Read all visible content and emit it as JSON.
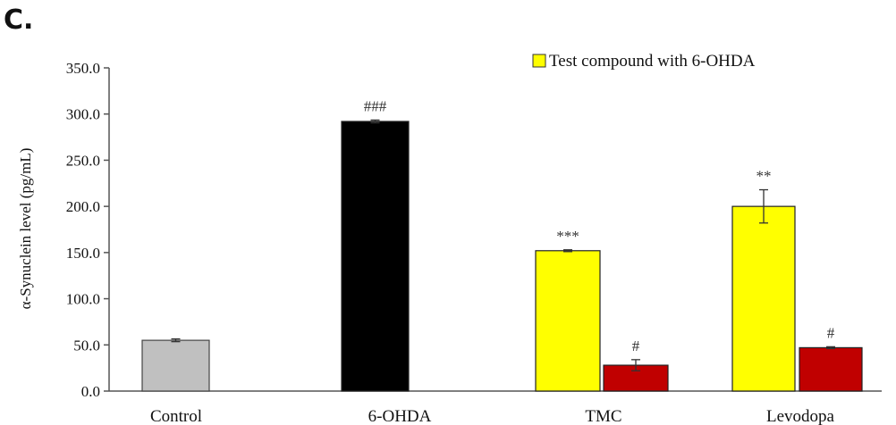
{
  "panel_label": "C.",
  "colors": {
    "control": "#c0c0c0",
    "ohda": "#000000",
    "test": "#ffff00",
    "red": "#c00000",
    "axis": "#555555"
  },
  "chart_data": {
    "type": "bar",
    "ylabel": "α-Synuclein level (pg/mL)",
    "ylim": [
      0,
      350
    ],
    "yticks": [
      "0.0",
      "50.0",
      "100.0",
      "150.0",
      "200.0",
      "250.0",
      "300.0",
      "350.0"
    ],
    "categories": [
      "Control",
      "6-OHDA",
      "TMC",
      "Levodopa"
    ],
    "legend": {
      "label": "Test compound with 6-OHDA",
      "position": "top-right"
    },
    "grid": false,
    "bars": [
      {
        "category": "Control",
        "value": 55,
        "error": 1.5,
        "color_key": "control",
        "annotation": ""
      },
      {
        "category": "6-OHDA",
        "value": 292,
        "error": 1.5,
        "color_key": "ohda",
        "annotation": "###"
      },
      {
        "category": "TMC",
        "value": 152,
        "error": 1,
        "color_key": "test",
        "annotation": "***"
      },
      {
        "category": "TMC",
        "value": 28,
        "error": 6,
        "color_key": "red",
        "annotation": "#"
      },
      {
        "category": "Levodopa",
        "value": 200,
        "error": 18,
        "color_key": "test",
        "annotation": "**"
      },
      {
        "category": "Levodopa",
        "value": 47,
        "error": 1,
        "color_key": "red",
        "annotation": "#"
      }
    ]
  }
}
